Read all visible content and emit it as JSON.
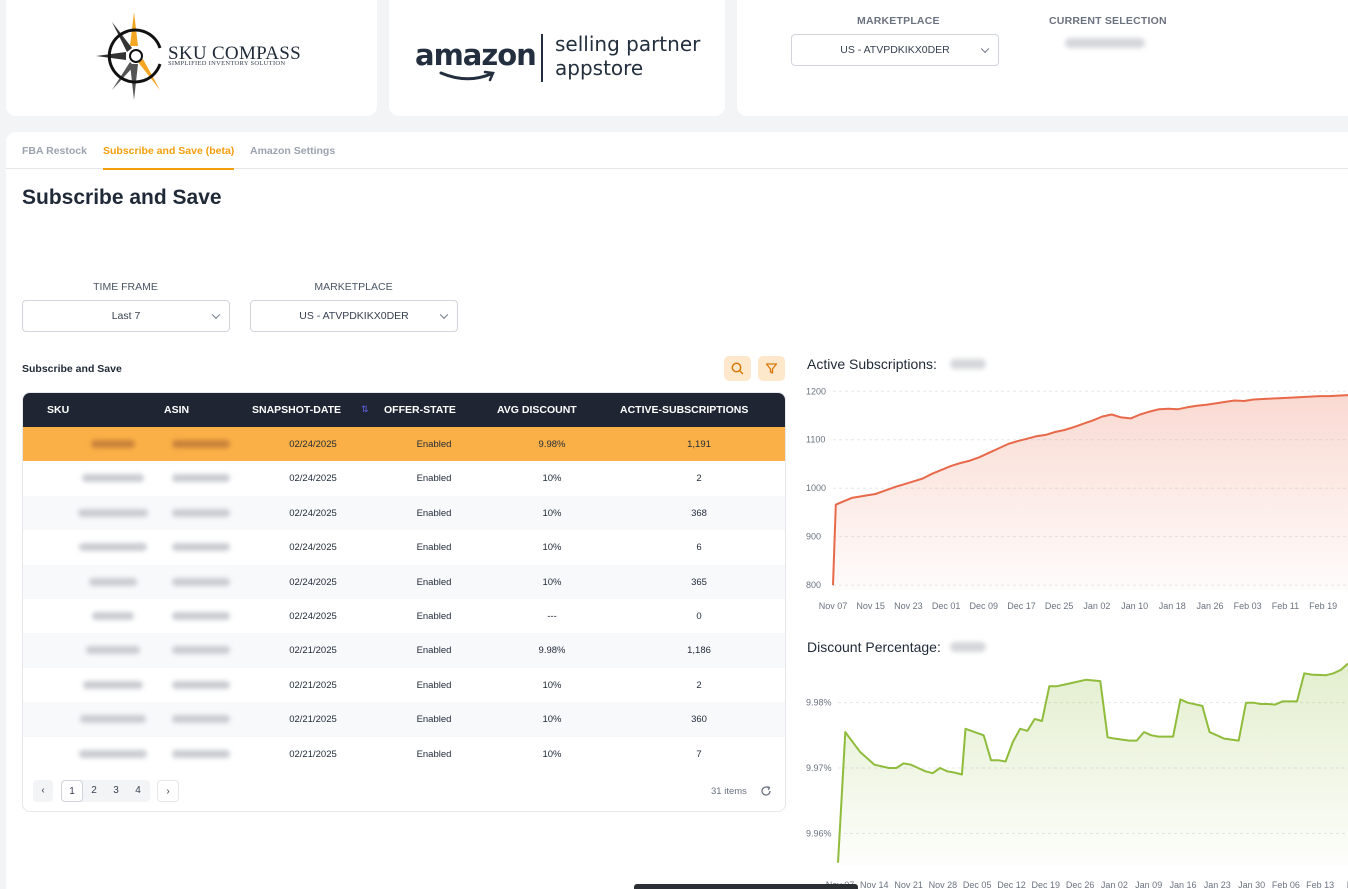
{
  "branding": {
    "sku_compass_title": "SKU COMPASS",
    "sku_compass_tagline": "SIMPLIFIED INVENTORY SOLUTION",
    "amazon_wordmark": "amazon",
    "appstore_line1": "selling partner",
    "appstore_line2": "appstore"
  },
  "header": {
    "marketplace_label": "MARKETPLACE",
    "marketplace_value": "US - ATVPDKIKX0DER",
    "current_selection_label": "CURRENT SELECTION"
  },
  "tabs": [
    {
      "label": "FBA Restock",
      "active": false
    },
    {
      "label": "Subscribe and Save (beta)",
      "active": true
    },
    {
      "label": "Amazon Settings",
      "active": false
    }
  ],
  "page": {
    "title": "Subscribe and Save"
  },
  "filters": {
    "time_frame_label": "TIME FRAME",
    "time_frame_value": "Last 7",
    "marketplace_label": "MARKETPLACE",
    "marketplace_value": "US - ATVPDKIKX0DER"
  },
  "table": {
    "title": "Subscribe and Save",
    "columns": [
      "SKU",
      "ASIN",
      "SNAPSHOT-DATE",
      "OFFER-STATE",
      "AVG DISCOUNT",
      "ACTIVE-SUBSCRIPTIONS"
    ],
    "rows": [
      {
        "date": "02/24/2025",
        "state": "Enabled",
        "discount": "9.98%",
        "subs": "1,191",
        "selected": true
      },
      {
        "date": "02/24/2025",
        "state": "Enabled",
        "discount": "10%",
        "subs": "2"
      },
      {
        "date": "02/24/2025",
        "state": "Enabled",
        "discount": "10%",
        "subs": "368"
      },
      {
        "date": "02/24/2025",
        "state": "Enabled",
        "discount": "10%",
        "subs": "6"
      },
      {
        "date": "02/24/2025",
        "state": "Enabled",
        "discount": "10%",
        "subs": "365"
      },
      {
        "date": "02/24/2025",
        "state": "Enabled",
        "discount": "---",
        "subs": "0"
      },
      {
        "date": "02/21/2025",
        "state": "Enabled",
        "discount": "9.98%",
        "subs": "1,186"
      },
      {
        "date": "02/21/2025",
        "state": "Enabled",
        "discount": "10%",
        "subs": "2"
      },
      {
        "date": "02/21/2025",
        "state": "Enabled",
        "discount": "10%",
        "subs": "360"
      },
      {
        "date": "02/21/2025",
        "state": "Enabled",
        "discount": "10%",
        "subs": "7"
      }
    ],
    "pagination": {
      "pages": [
        "1",
        "2",
        "3",
        "4"
      ],
      "current": "1",
      "prev": "‹",
      "next": "›",
      "items_label": "31 items"
    }
  },
  "icons": {
    "search": "search-icon",
    "filter": "filter-icon",
    "refresh": "refresh-icon",
    "sort": "sort-icon",
    "chevron": "chevron-down-icon"
  },
  "colors": {
    "accent": "#f59e0b",
    "selected_row": "#fbb047",
    "table_header": "#1f2533",
    "subs_line": "#e8694a",
    "discount_line": "#8fbc3b"
  },
  "chart_data": [
    {
      "type": "area",
      "title": "Active Subscriptions:",
      "x_ticks": [
        "Nov 07",
        "Nov 15",
        "Nov 23",
        "Dec 01",
        "Dec 09",
        "Dec 17",
        "Dec 25",
        "Jan 02",
        "Jan 10",
        "Jan 18",
        "Jan 26",
        "Feb 03",
        "Feb 11",
        "Feb 19"
      ],
      "y_ticks": [
        800,
        900,
        1000,
        1100,
        1200
      ],
      "ylim": [
        790,
        1215
      ],
      "x": [
        0,
        0.6,
        2,
        4,
        7,
        9,
        11,
        13,
        15,
        17,
        19,
        21,
        23,
        25,
        27,
        29,
        31,
        33,
        35,
        37,
        39,
        41,
        43,
        45,
        47,
        49,
        51,
        53,
        55,
        57,
        59,
        61,
        63,
        65,
        67,
        69,
        71,
        73,
        75,
        77,
        79,
        81,
        83,
        85,
        87,
        89,
        91,
        93,
        95,
        97,
        99,
        101,
        103,
        105,
        107,
        109
      ],
      "values": [
        800,
        966,
        972,
        980,
        985,
        988,
        995,
        1002,
        1008,
        1014,
        1020,
        1030,
        1038,
        1046,
        1052,
        1057,
        1064,
        1073,
        1082,
        1091,
        1097,
        1102,
        1107,
        1110,
        1116,
        1120,
        1126,
        1133,
        1140,
        1148,
        1152,
        1146,
        1144,
        1152,
        1158,
        1163,
        1164,
        1163,
        1167,
        1170,
        1172,
        1175,
        1178,
        1181,
        1180,
        1183,
        1184,
        1185,
        1186,
        1187,
        1188,
        1189,
        1190,
        1190,
        1191,
        1192
      ],
      "line_color": "#e8694a"
    },
    {
      "type": "area",
      "title": "Discount Percentage:",
      "x_ticks": [
        "Nov 07",
        "Nov 14",
        "Nov 21",
        "Nov 28",
        "Dec 05",
        "Dec 12",
        "Dec 19",
        "Dec 26",
        "Jan 02",
        "Jan 09",
        "Jan 16",
        "Jan 23",
        "Jan 30",
        "Feb 06",
        "Feb 13",
        "Feb"
      ],
      "y_ticks": [
        "9.96%",
        "9.97%",
        "9.98%"
      ],
      "ylim": [
        9.955,
        9.985
      ],
      "x": [
        0,
        1,
        3,
        5,
        7,
        8,
        9,
        10,
        11,
        12,
        13,
        14,
        15,
        16,
        17,
        17.5,
        20,
        21,
        22,
        23,
        24,
        25,
        26,
        27,
        28,
        29,
        30,
        32,
        34,
        36,
        37,
        38,
        40,
        41,
        42,
        43,
        44,
        46,
        47,
        48,
        50,
        51,
        52,
        53,
        55,
        56,
        57,
        58,
        59,
        60,
        61,
        63,
        64,
        65,
        67,
        68,
        69,
        70
      ],
      "values": [
        9.9555,
        9.9755,
        9.9725,
        9.9705,
        9.97,
        9.97,
        9.9707,
        9.9705,
        9.97,
        9.9695,
        9.9692,
        9.97,
        9.9695,
        9.9693,
        9.969,
        9.976,
        9.975,
        9.9712,
        9.9712,
        9.971,
        9.974,
        9.976,
        9.9757,
        9.9775,
        9.9772,
        9.9825,
        9.9825,
        9.983,
        9.9835,
        9.9833,
        9.9747,
        9.9745,
        9.9742,
        9.9742,
        9.9755,
        9.975,
        9.9748,
        9.9748,
        9.9805,
        9.98,
        9.9795,
        9.9755,
        9.975,
        9.9745,
        9.9742,
        9.98,
        9.98,
        9.9798,
        9.9798,
        9.9797,
        9.9802,
        9.9802,
        9.9845,
        9.9843,
        9.9842,
        9.9845,
        9.985,
        9.986
      ],
      "line_color": "#8fbc3b"
    }
  ]
}
